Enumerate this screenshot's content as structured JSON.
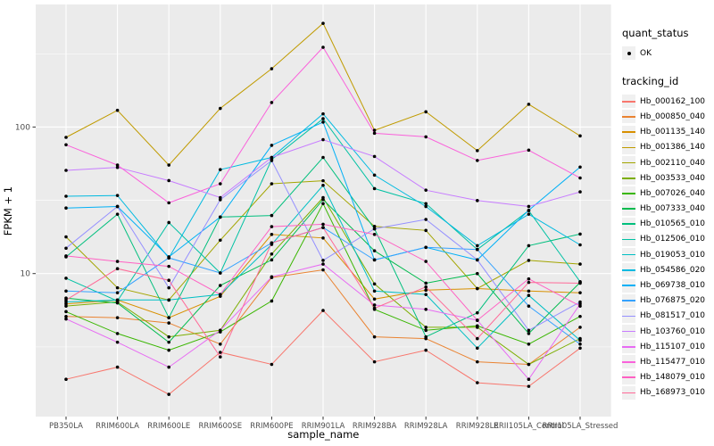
{
  "figure": {
    "x_axis_title": "sample_name",
    "y_axis_title": "FPKM + 1",
    "y_tick_labels": [
      "100",
      "10"
    ]
  },
  "legend": {
    "quant_status_title": "quant_status",
    "quant_status_value": "OK",
    "tracking_title": "tracking_id"
  },
  "colors": {
    "panel_bg": "#EBEBEB",
    "grid": "#FFFFFF",
    "tick_label": "#4D4D4D",
    "axis_title": "#000000",
    "point": "#000000",
    "legend_key_bg": "#F0F0F0"
  },
  "chart_data": {
    "type": "line",
    "title": "",
    "xlabel": "sample_name",
    "ylabel": "FPKM + 1",
    "y_scale": "log10",
    "ylim": [
      1.05,
      686
    ],
    "y_major_ticks": [
      10,
      100
    ],
    "y_minor_gridlines": [
      3.162,
      31.62,
      316.2
    ],
    "grid": "on",
    "legend_position": "right",
    "marker": "black-point",
    "categories": [
      "PB350LA",
      "RRIM600LA",
      "RRIM600LE",
      "RRIM600SE",
      "RRIM600PE",
      "RRIM901LA",
      "RRIM928BA",
      "RRIM928LA",
      "RRIM928LE",
      "RRII105LA_Control",
      "RRII105LA_Stressed"
    ],
    "series": [
      {
        "name": "Hb_000162_100",
        "color": "#F8766D",
        "values": [
          1.9,
          2.3,
          1.5,
          2.9,
          2.4,
          5.6,
          2.5,
          3.0,
          1.8,
          1.7,
          3.1
        ]
      },
      {
        "name": "Hb_000850_040",
        "color": "#EA8331",
        "values": [
          5.1,
          5.0,
          4.6,
          3.3,
          9.4,
          10.6,
          3.7,
          3.6,
          2.5,
          2.4,
          4.3
        ]
      },
      {
        "name": "Hb_001135_140",
        "color": "#D89000",
        "values": [
          6.2,
          6.6,
          5.0,
          7.0,
          18.5,
          17.5,
          6.7,
          7.7,
          7.9,
          7.6,
          7.4
        ]
      },
      {
        "name": "Hb_001386_140",
        "color": "#C09B00",
        "values": [
          85,
          130,
          55,
          134,
          250,
          510,
          95,
          127,
          69,
          143,
          87
        ]
      },
      {
        "name": "Hb_002110_040",
        "color": "#A3A500",
        "values": [
          17.8,
          8.0,
          6.6,
          16.9,
          41,
          43,
          21,
          19.7,
          7.9,
          12.3,
          11.6
        ]
      },
      {
        "name": "Hb_003533_040",
        "color": "#7CAE00",
        "values": [
          6.0,
          6.4,
          3.7,
          4.1,
          13.6,
          33,
          8.5,
          4.3,
          4.3,
          2.4,
          3.6
        ]
      },
      {
        "name": "Hb_007026_040",
        "color": "#39B600",
        "values": [
          5.5,
          3.9,
          3.0,
          4.0,
          6.5,
          30,
          5.7,
          4.1,
          4.4,
          3.3,
          5.1
        ]
      },
      {
        "name": "Hb_007333_040",
        "color": "#00BB4E",
        "values": [
          6.8,
          6.3,
          3.4,
          8.3,
          12.4,
          32,
          14.3,
          8.6,
          10.0,
          3.9,
          8.7
        ]
      },
      {
        "name": "Hb_010565_010",
        "color": "#00BF7D",
        "values": [
          13.0,
          25.4,
          5.0,
          24.3,
          24.9,
          62,
          20.2,
          3.7,
          5.4,
          15.5,
          18.6
        ]
      },
      {
        "name": "Hb_012506_010",
        "color": "#00C1A3",
        "values": [
          9.3,
          6.5,
          22.3,
          10.1,
          60,
          114,
          38,
          30,
          14.6,
          26.9,
          8.8
        ]
      },
      {
        "name": "Hb_019053_010",
        "color": "#00BFC4",
        "values": [
          6.4,
          6.6,
          6.6,
          7.2,
          15.8,
          40,
          7.6,
          7.2,
          3.1,
          7.1,
          3.5
        ]
      },
      {
        "name": "Hb_054586_020",
        "color": "#00BAE0",
        "values": [
          33.7,
          34.1,
          12.8,
          51.2,
          62,
          123,
          47,
          28.7,
          15.5,
          25.4,
          15.7
        ]
      },
      {
        "name": "Hb_069738_010",
        "color": "#00B0F6",
        "values": [
          28,
          28.7,
          13,
          24.3,
          75,
          108,
          12.4,
          15.1,
          12.4,
          27,
          53.3
        ]
      },
      {
        "name": "Hb_076875_020",
        "color": "#35A2FF",
        "values": [
          7.6,
          7.4,
          12.8,
          10.1,
          16.2,
          20.6,
          12.4,
          15.1,
          14.6,
          6.0,
          3.3
        ]
      },
      {
        "name": "Hb_081517_010",
        "color": "#9590FF",
        "values": [
          14.9,
          28.7,
          8.0,
          31.9,
          59,
          12.3,
          20.2,
          23.4,
          12.4,
          4.1,
          6.4
        ]
      },
      {
        "name": "Hb_103760_010",
        "color": "#C77CFF",
        "values": [
          50.6,
          53,
          43.1,
          33,
          62,
          82,
          63,
          37.1,
          31.5,
          28.7,
          36.1
        ]
      },
      {
        "name": "Hb_115107_010",
        "color": "#E76BF3",
        "values": [
          4.9,
          3.4,
          2.3,
          4.1,
          9.5,
          11.6,
          6.1,
          5.7,
          4.8,
          1.9,
          6.2
        ]
      },
      {
        "name": "Hb_115477_010",
        "color": "#FA62DB",
        "values": [
          75.7,
          55,
          30.4,
          41,
          147,
          350,
          90.7,
          85.7,
          59.1,
          69.5,
          44.9
        ]
      },
      {
        "name": "Hb_148079_010",
        "color": "#FF61C3",
        "values": [
          13.2,
          12.1,
          11.2,
          7.2,
          20.9,
          21.7,
          18.5,
          12.1,
          4.8,
          9.2,
          6.0
        ]
      },
      {
        "name": "Hb_168973_010",
        "color": "#FF6A98",
        "values": [
          6.6,
          10.8,
          9.0,
          2.7,
          16.2,
          20.6,
          5.8,
          8.1,
          3.6,
          8.7,
          8.6
        ]
      }
    ]
  }
}
